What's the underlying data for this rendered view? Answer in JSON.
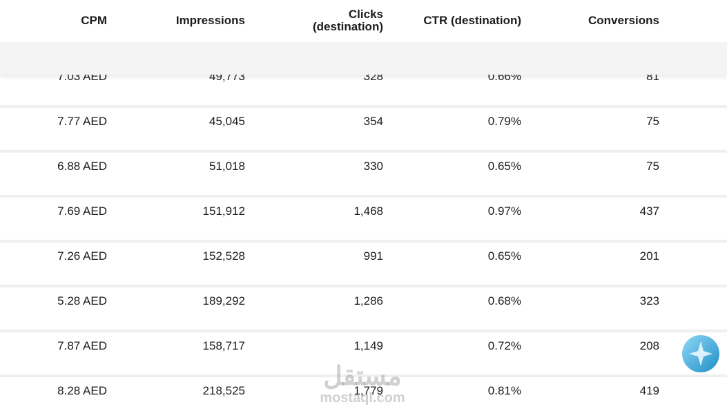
{
  "table": {
    "headers": [
      [
        "CPM"
      ],
      [
        "Impressions"
      ],
      [
        "Clicks",
        "(destination)"
      ],
      [
        "CTR (destination)"
      ],
      [
        "Conversions"
      ]
    ],
    "rows": [
      [
        "7.03 AED",
        "49,773",
        "328",
        "0.66%",
        "81"
      ],
      [
        "7.77 AED",
        "45,045",
        "354",
        "0.79%",
        "75"
      ],
      [
        "6.88 AED",
        "51,018",
        "330",
        "0.65%",
        "75"
      ],
      [
        "7.69 AED",
        "151,912",
        "1,468",
        "0.97%",
        "437"
      ],
      [
        "7.26 AED",
        "152,528",
        "991",
        "0.65%",
        "201"
      ],
      [
        "5.28 AED",
        "189,292",
        "1,286",
        "0.68%",
        "323"
      ],
      [
        "7.87 AED",
        "158,717",
        "1,149",
        "0.72%",
        "208"
      ],
      [
        "8.28 AED",
        "218,525",
        "1,779",
        "0.81%",
        "419"
      ]
    ]
  },
  "watermark": {
    "arabic": "مستقل",
    "latin": "mostaql.com"
  }
}
